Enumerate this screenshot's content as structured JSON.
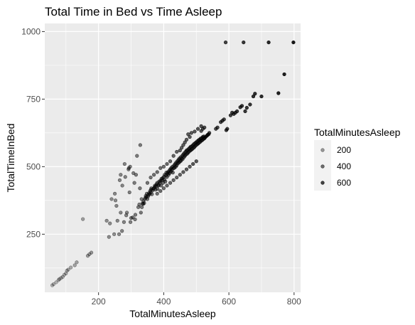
{
  "chart_data": {
    "type": "scatter",
    "title": "Total Time in Bed vs Time Asleep",
    "xlabel": "TotalMinutesAsleep",
    "ylabel": "TotalTimeInBed",
    "xlim": [
      35,
      820
    ],
    "ylim": [
      35,
      1030
    ],
    "xticks": [
      200,
      400,
      600,
      800
    ],
    "yticks": [
      250,
      500,
      750,
      1000
    ],
    "grid": true,
    "background": "#ebebeb",
    "gridColor": "#ffffff",
    "pointColor": "#000000",
    "legend": {
      "title": "TotalMinutesAsleep",
      "placement": "right",
      "values": [
        200,
        400,
        600
      ],
      "labels": [
        "200",
        "400",
        "600"
      ]
    },
    "points": [
      [
        58,
        61
      ],
      [
        62,
        65
      ],
      [
        70,
        72
      ],
      [
        77,
        80
      ],
      [
        80,
        84
      ],
      [
        85,
        88
      ],
      [
        90,
        92
      ],
      [
        95,
        100
      ],
      [
        100,
        105
      ],
      [
        103,
        115
      ],
      [
        107,
        119
      ],
      [
        115,
        127
      ],
      [
        127,
        135
      ],
      [
        133,
        146
      ],
      [
        152,
        306
      ],
      [
        167,
        170
      ],
      [
        172,
        176
      ],
      [
        178,
        182
      ],
      [
        225,
        300
      ],
      [
        232,
        240
      ],
      [
        235,
        290
      ],
      [
        240,
        380
      ],
      [
        248,
        250
      ],
      [
        250,
        400
      ],
      [
        252,
        375
      ],
      [
        255,
        355
      ],
      [
        258,
        300
      ],
      [
        263,
        250
      ],
      [
        265,
        450
      ],
      [
        268,
        470
      ],
      [
        268,
        330
      ],
      [
        272,
        262
      ],
      [
        273,
        430
      ],
      [
        278,
        295
      ],
      [
        280,
        510
      ],
      [
        282,
        462
      ],
      [
        285,
        320
      ],
      [
        287,
        330
      ],
      [
        292,
        490
      ],
      [
        293,
        495
      ],
      [
        295,
        405
      ],
      [
        297,
        500
      ],
      [
        298,
        295
      ],
      [
        300,
        310
      ],
      [
        305,
        312
      ],
      [
        307,
        476
      ],
      [
        310,
        440
      ],
      [
        312,
        305
      ],
      [
        313,
        322
      ],
      [
        315,
        470
      ],
      [
        318,
        540
      ],
      [
        322,
        350
      ],
      [
        325,
        360
      ],
      [
        327,
        420
      ],
      [
        328,
        580
      ],
      [
        330,
        330
      ],
      [
        332,
        380
      ],
      [
        333,
        350
      ],
      [
        335,
        364
      ],
      [
        337,
        362
      ],
      [
        338,
        372
      ],
      [
        340,
        365
      ],
      [
        342,
        380
      ],
      [
        344,
        385
      ],
      [
        345,
        392
      ],
      [
        347,
        388
      ],
      [
        348,
        400
      ],
      [
        350,
        380
      ],
      [
        352,
        390
      ],
      [
        353,
        396
      ],
      [
        355,
        402
      ],
      [
        357,
        398
      ],
      [
        358,
        410
      ],
      [
        360,
        405
      ],
      [
        361,
        415
      ],
      [
        362,
        420
      ],
      [
        364,
        398
      ],
      [
        366,
        412
      ],
      [
        368,
        418
      ],
      [
        370,
        420
      ],
      [
        372,
        425
      ],
      [
        373,
        430
      ],
      [
        375,
        415
      ],
      [
        376,
        428
      ],
      [
        378,
        435
      ],
      [
        380,
        440
      ],
      [
        381,
        418
      ],
      [
        383,
        430
      ],
      [
        385,
        432
      ],
      [
        386,
        445
      ],
      [
        388,
        440
      ],
      [
        390,
        448
      ],
      [
        392,
        430
      ],
      [
        393,
        455
      ],
      [
        395,
        450
      ],
      [
        397,
        458
      ],
      [
        398,
        440
      ],
      [
        400,
        462
      ],
      [
        402,
        452
      ],
      [
        403,
        470
      ],
      [
        405,
        445
      ],
      [
        407,
        468
      ],
      [
        408,
        478
      ],
      [
        410,
        462
      ],
      [
        412,
        475
      ],
      [
        413,
        480
      ],
      [
        415,
        470
      ],
      [
        417,
        485
      ],
      [
        418,
        476
      ],
      [
        420,
        490
      ],
      [
        422,
        482
      ],
      [
        423,
        495
      ],
      [
        425,
        488
      ],
      [
        427,
        500
      ],
      [
        428,
        478
      ],
      [
        430,
        494
      ],
      [
        432,
        505
      ],
      [
        433,
        496
      ],
      [
        435,
        510
      ],
      [
        437,
        500
      ],
      [
        438,
        515
      ],
      [
        440,
        505
      ],
      [
        442,
        520
      ],
      [
        443,
        512
      ],
      [
        445,
        525
      ],
      [
        447,
        515
      ],
      [
        448,
        530
      ],
      [
        450,
        520
      ],
      [
        452,
        535
      ],
      [
        453,
        522
      ],
      [
        455,
        530
      ],
      [
        457,
        540
      ],
      [
        458,
        528
      ],
      [
        460,
        545
      ],
      [
        462,
        535
      ],
      [
        463,
        550
      ],
      [
        465,
        540
      ],
      [
        467,
        555
      ],
      [
        468,
        545
      ],
      [
        470,
        560
      ],
      [
        472,
        548
      ],
      [
        473,
        562
      ],
      [
        475,
        552
      ],
      [
        477,
        566
      ],
      [
        478,
        556
      ],
      [
        480,
        570
      ],
      [
        482,
        560
      ],
      [
        483,
        574
      ],
      [
        485,
        563
      ],
      [
        487,
        576
      ],
      [
        488,
        566
      ],
      [
        490,
        580
      ],
      [
        492,
        570
      ],
      [
        493,
        584
      ],
      [
        495,
        574
      ],
      [
        497,
        588
      ],
      [
        498,
        578
      ],
      [
        500,
        590
      ],
      [
        502,
        582
      ],
      [
        503,
        594
      ],
      [
        505,
        585
      ],
      [
        507,
        598
      ],
      [
        508,
        588
      ],
      [
        510,
        600
      ],
      [
        512,
        592
      ],
      [
        513,
        604
      ],
      [
        515,
        596
      ],
      [
        517,
        606
      ],
      [
        518,
        598
      ],
      [
        520,
        610
      ],
      [
        522,
        602
      ],
      [
        523,
        612
      ],
      [
        525,
        605
      ],
      [
        527,
        608
      ],
      [
        530,
        612
      ],
      [
        533,
        615
      ],
      [
        535,
        618
      ],
      [
        538,
        620
      ],
      [
        540,
        625
      ],
      [
        350,
        440
      ],
      [
        360,
        460
      ],
      [
        370,
        470
      ],
      [
        380,
        480
      ],
      [
        390,
        495
      ],
      [
        400,
        500
      ],
      [
        410,
        510
      ],
      [
        420,
        520
      ],
      [
        430,
        540
      ],
      [
        440,
        555
      ],
      [
        450,
        560
      ],
      [
        460,
        580
      ],
      [
        470,
        600
      ],
      [
        480,
        610
      ],
      [
        455,
        570
      ],
      [
        465,
        590
      ],
      [
        475,
        620
      ],
      [
        485,
        625
      ],
      [
        495,
        630
      ],
      [
        505,
        640
      ],
      [
        515,
        650
      ],
      [
        515,
        632
      ],
      [
        520,
        640
      ],
      [
        525,
        645
      ],
      [
        380,
        400
      ],
      [
        390,
        410
      ],
      [
        400,
        420
      ],
      [
        410,
        430
      ],
      [
        420,
        440
      ],
      [
        430,
        450
      ],
      [
        440,
        460
      ],
      [
        450,
        470
      ],
      [
        460,
        480
      ],
      [
        470,
        490
      ],
      [
        480,
        500
      ],
      [
        490,
        510
      ],
      [
        500,
        520
      ],
      [
        560,
        640
      ],
      [
        565,
        645
      ],
      [
        575,
        665
      ],
      [
        580,
        670
      ],
      [
        585,
        675
      ],
      [
        592,
        635
      ],
      [
        595,
        640
      ],
      [
        605,
        690
      ],
      [
        610,
        700
      ],
      [
        615,
        695
      ],
      [
        620,
        700
      ],
      [
        625,
        705
      ],
      [
        635,
        720
      ],
      [
        640,
        725
      ],
      [
        650,
        705
      ],
      [
        655,
        718
      ],
      [
        665,
        730
      ],
      [
        675,
        760
      ],
      [
        680,
        770
      ],
      [
        700,
        760
      ],
      [
        590,
        960
      ],
      [
        645,
        960
      ],
      [
        722,
        960
      ],
      [
        798,
        960
      ],
      [
        770,
        842
      ],
      [
        752,
        772
      ]
    ]
  }
}
